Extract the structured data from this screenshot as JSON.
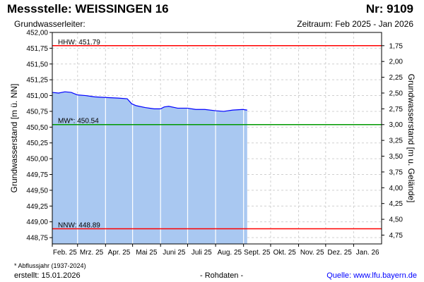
{
  "header": {
    "title": "Messstelle: WEISSINGEN 16",
    "number": "Nr: 9109",
    "aquifer": "Grundwasserleiter:",
    "period": "Zeitraum: Feb 2025 - Jan 2026"
  },
  "footer": {
    "footnote": "* Abflussjahr (1937-2024)",
    "created": "erstellt:  15.01.2026",
    "status": "- Rohdaten -",
    "source": "Quelle: www.lfu.bayern.de"
  },
  "colors": {
    "area": "#a9c8f1",
    "line": "#0000ff",
    "hhw": "#ff0000",
    "mw": "#009900",
    "nnw": "#ff0000",
    "grid": "#d0d0d0",
    "vgrid": "#ffffff"
  },
  "chart_data": {
    "type": "area",
    "ylabel": "Grundwasserstand [m ü. NN]",
    "y2label": "Grundwasserstand [m u. Gelände]",
    "ylim": [
      448.65,
      452.0
    ],
    "y_ticks": [
      "452,00",
      "451,75",
      "451,50",
      "451,25",
      "451,00",
      "450,75",
      "450,50",
      "450,25",
      "450,00",
      "449,75",
      "449,50",
      "449,25",
      "449,00",
      "448,75"
    ],
    "y_tick_values": [
      452.0,
      451.75,
      451.5,
      451.25,
      451.0,
      450.75,
      450.5,
      450.25,
      450.0,
      449.75,
      449.5,
      449.25,
      449.0,
      448.75
    ],
    "y2_ticks": [
      "1,75",
      "2,00",
      "2,25",
      "2,50",
      "2,75",
      "3,00",
      "3,25",
      "3,50",
      "3,75",
      "4,00",
      "4,25",
      "4,50",
      "4,75"
    ],
    "y2_tick_values": [
      1.75,
      2.0,
      2.25,
      2.5,
      2.75,
      3.0,
      3.25,
      3.5,
      3.75,
      4.0,
      4.25,
      4.5,
      4.75
    ],
    "ground_level": 453.54,
    "x_ticks": [
      "Feb. 25",
      "Mrz. 25",
      "Apr. 25",
      "Mai 25",
      "Juni 25",
      "Juli 25",
      "Aug. 25",
      "Sept. 25",
      "Okt. 25",
      "Nov. 25",
      "Dez. 25",
      "Jan. 26"
    ],
    "x_start": "2025-02-01",
    "x_end": "2026-01-31",
    "reference_lines": [
      {
        "label": "HHW: 451.79",
        "value": 451.79,
        "color": "#ff0000"
      },
      {
        "label": "MW*: 450.54",
        "value": 450.54,
        "color": "#009900"
      },
      {
        "label": "NNW: 448.89",
        "value": 448.89,
        "color": "#ff0000"
      }
    ],
    "series": [
      {
        "x": [
          "2025-02-01",
          "2025-02-08",
          "2025-02-15",
          "2025-02-22",
          "2025-03-01",
          "2025-03-10",
          "2025-03-20",
          "2025-04-01",
          "2025-04-15",
          "2025-04-25",
          "2025-04-30",
          "2025-05-05",
          "2025-05-15",
          "2025-05-25",
          "2025-06-01",
          "2025-06-05",
          "2025-06-10",
          "2025-06-20",
          "2025-07-01",
          "2025-07-10",
          "2025-07-20",
          "2025-08-01",
          "2025-08-10",
          "2025-08-20",
          "2025-08-31",
          "2025-09-05"
        ],
        "y": [
          451.05,
          451.04,
          451.06,
          451.05,
          451.01,
          451.0,
          450.98,
          450.97,
          450.96,
          450.95,
          450.87,
          450.84,
          450.81,
          450.79,
          450.79,
          450.82,
          450.83,
          450.8,
          450.8,
          450.78,
          450.78,
          450.76,
          450.75,
          450.77,
          450.78,
          450.77
        ]
      }
    ]
  }
}
